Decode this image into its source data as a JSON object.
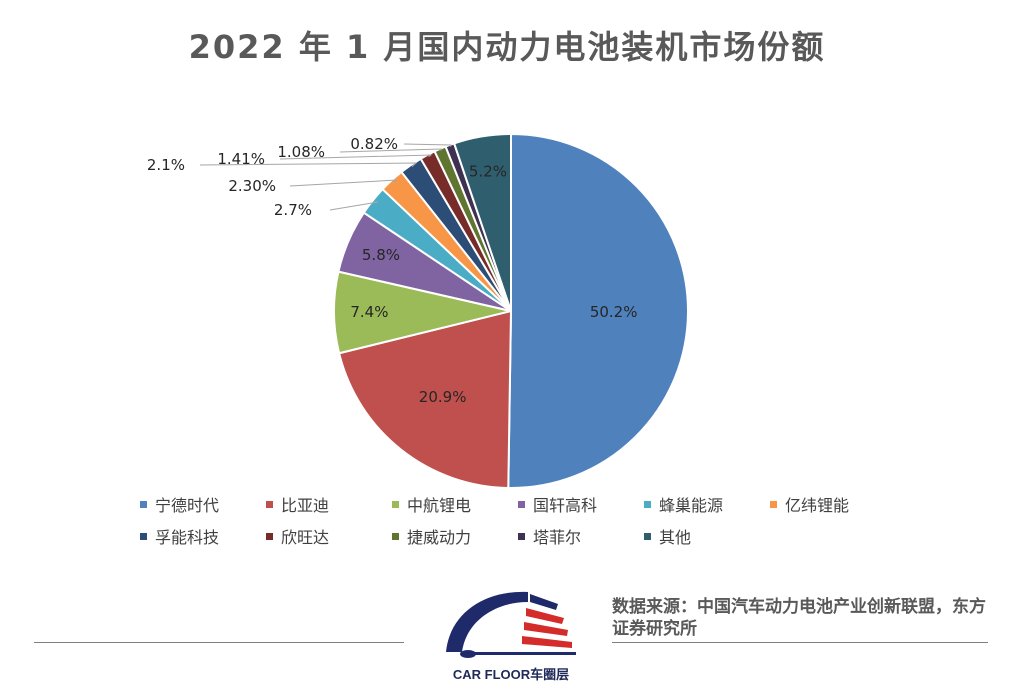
{
  "chart_data": {
    "type": "pie",
    "title": "2022 年 1 月国内动力电池装机市场份额",
    "slices": [
      {
        "name": "宁德时代",
        "value": 50.2,
        "label": "50.2%",
        "color": "#4F81BD"
      },
      {
        "name": "比亚迪",
        "value": 20.9,
        "label": "20.9%",
        "color": "#C0504D"
      },
      {
        "name": "中航锂电",
        "value": 7.4,
        "label": "7.4%",
        "color": "#9BBB59"
      },
      {
        "name": "国轩高科",
        "value": 5.8,
        "label": "5.8%",
        "color": "#8064A2"
      },
      {
        "name": "蜂巢能源",
        "value": 2.7,
        "label": "2.7%",
        "color": "#4BACC6"
      },
      {
        "name": "亿纬锂能",
        "value": 2.3,
        "label": "2.30%",
        "color": "#F79646"
      },
      {
        "name": "孚能科技",
        "value": 2.1,
        "label": "2.1%",
        "color": "#2C4D75"
      },
      {
        "name": "欣旺达",
        "value": 1.41,
        "label": "1.41%",
        "color": "#772C2A"
      },
      {
        "name": "捷威动力",
        "value": 1.08,
        "label": "1.08%",
        "color": "#5F7530"
      },
      {
        "name": "塔菲尔",
        "value": 0.82,
        "label": "0.82%",
        "color": "#3F3151"
      },
      {
        "name": "其他",
        "value": 5.2,
        "label": "5.2%",
        "color": "#2F5F6F"
      }
    ],
    "legend_position": "bottom"
  },
  "source_note": "数据来源：中国汽车动力电池产业创新联盟，东方证券研究所",
  "logo": {
    "text": "CAR FLOOR车圈层"
  }
}
